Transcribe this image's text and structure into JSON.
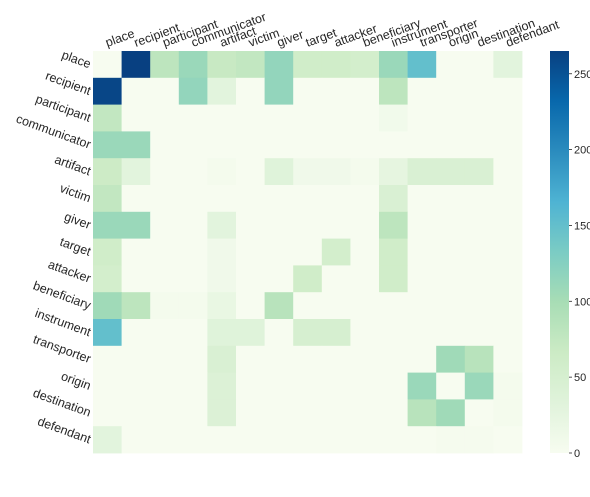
{
  "chart_data": {
    "type": "heatmap",
    "title": "",
    "xlabel": "",
    "ylabel": "",
    "x_categories": [
      "place",
      "recipient",
      "participant",
      "communicator",
      "artifact",
      "victim",
      "giver",
      "target",
      "attacker",
      "beneficiary",
      "instrument",
      "transporter",
      "origin",
      "destination",
      "defendant"
    ],
    "y_categories": [
      "place",
      "recipient",
      "participant",
      "communicator",
      "artifact",
      "victim",
      "giver",
      "target",
      "attacker",
      "beneficiary",
      "instrument",
      "transporter",
      "origin",
      "destination",
      "defendant"
    ],
    "values": [
      [
        0,
        265,
        80,
        110,
        70,
        75,
        115,
        60,
        60,
        55,
        110,
        150,
        0,
        0,
        30
      ],
      [
        260,
        0,
        0,
        115,
        30,
        0,
        115,
        0,
        0,
        0,
        80,
        0,
        0,
        0,
        0
      ],
      [
        75,
        0,
        0,
        0,
        0,
        0,
        0,
        0,
        0,
        0,
        8,
        0,
        0,
        0,
        0
      ],
      [
        110,
        110,
        0,
        0,
        0,
        0,
        0,
        0,
        0,
        0,
        0,
        0,
        0,
        0,
        0
      ],
      [
        65,
        30,
        0,
        0,
        5,
        0,
        35,
        10,
        10,
        5,
        25,
        45,
        45,
        45,
        0
      ],
      [
        75,
        0,
        0,
        0,
        0,
        0,
        0,
        0,
        0,
        0,
        45,
        0,
        0,
        0,
        0
      ],
      [
        110,
        110,
        0,
        0,
        30,
        0,
        0,
        0,
        0,
        0,
        80,
        0,
        0,
        0,
        0
      ],
      [
        60,
        0,
        0,
        0,
        10,
        0,
        0,
        0,
        55,
        0,
        60,
        0,
        0,
        0,
        0
      ],
      [
        55,
        0,
        0,
        0,
        10,
        0,
        0,
        60,
        0,
        0,
        60,
        0,
        0,
        0,
        0
      ],
      [
        105,
        80,
        5,
        5,
        20,
        0,
        85,
        0,
        0,
        0,
        0,
        0,
        0,
        0,
        0
      ],
      [
        150,
        0,
        0,
        0,
        35,
        35,
        0,
        50,
        50,
        0,
        0,
        0,
        0,
        0,
        0
      ],
      [
        0,
        0,
        0,
        0,
        45,
        0,
        0,
        0,
        0,
        0,
        0,
        0,
        105,
        85,
        0
      ],
      [
        0,
        0,
        0,
        0,
        40,
        0,
        0,
        0,
        0,
        0,
        0,
        110,
        0,
        110,
        5
      ],
      [
        0,
        0,
        0,
        0,
        40,
        0,
        0,
        0,
        0,
        0,
        0,
        85,
        105,
        0,
        5
      ],
      [
        30,
        0,
        0,
        0,
        0,
        0,
        0,
        0,
        0,
        0,
        0,
        0,
        3,
        3,
        0
      ]
    ],
    "colorbar": {
      "min": 0,
      "max": 265,
      "ticks": [
        0,
        50,
        100,
        150,
        200,
        250
      ],
      "colormap": "GnBu"
    },
    "grid": false,
    "legend": "colorbar-right"
  }
}
